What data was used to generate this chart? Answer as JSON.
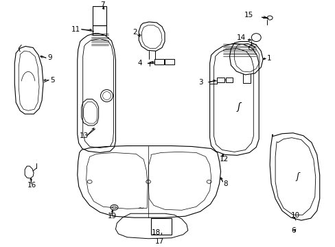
{
  "bg_color": "#ffffff",
  "fig_width": 4.89,
  "fig_height": 3.6,
  "dpi": 100,
  "line_color": "#000000",
  "label_fontsize": 7.5
}
